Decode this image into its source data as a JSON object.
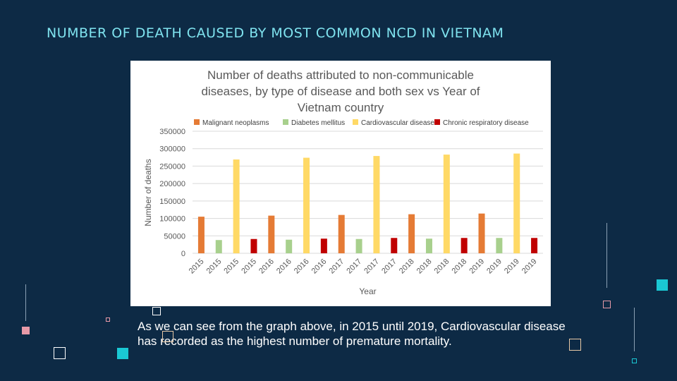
{
  "slide": {
    "title": "NUMBER OF DEATH CAUSED BY MOST COMMON NCD IN VIETNAM",
    "caption": "As we can see from the graph above, in 2015 until 2019, Cardiovascular disease has recorded as the highest number of premature mortality."
  },
  "colors": {
    "background": "#0d2a45",
    "title": "#7fe3ef",
    "accent_teal": "#1ac8d4",
    "accent_pink": "#e79aa8"
  },
  "chart_data": {
    "type": "bar",
    "title": "Number of deaths attributed to non-communicable diseases, by type of disease and both sex vs Year of Vietnam country",
    "title_lines": [
      "Number of deaths attributed to non-communicable",
      "diseases, by type of disease and both sex vs Year of",
      "Vietnam country"
    ],
    "xlabel": "Year",
    "ylabel": "Number of deaths",
    "ylim": [
      0,
      350000
    ],
    "yticks": [
      0,
      50000,
      100000,
      150000,
      200000,
      250000,
      300000,
      350000
    ],
    "grid": true,
    "legend_position": "top",
    "legend": [
      {
        "name": "Malignant neoplasms",
        "color": "#e57b35"
      },
      {
        "name": "Diabetes mellitus",
        "color": "#a8d08d"
      },
      {
        "name": "Cardiovascular diseases",
        "color": "#ffd966"
      },
      {
        "name": "Chronic respiratory disease",
        "color": "#c00000"
      }
    ],
    "categories": [
      "2015",
      "2015",
      "2015",
      "2015",
      "2016",
      "2016",
      "2016",
      "2016",
      "2017",
      "2017",
      "2017",
      "2017",
      "2018",
      "2018",
      "2018",
      "2018",
      "2019",
      "2019",
      "2019",
      "2019"
    ],
    "bars": [
      {
        "category": "2015",
        "series": "Malignant neoplasms",
        "value": 105000
      },
      {
        "category": "2015",
        "series": "Diabetes mellitus",
        "value": 38000
      },
      {
        "category": "2015",
        "series": "Cardiovascular diseases",
        "value": 269000
      },
      {
        "category": "2015",
        "series": "Chronic respiratory disease",
        "value": 41000
      },
      {
        "category": "2016",
        "series": "Malignant neoplasms",
        "value": 108000
      },
      {
        "category": "2016",
        "series": "Diabetes mellitus",
        "value": 39000
      },
      {
        "category": "2016",
        "series": "Cardiovascular diseases",
        "value": 274000
      },
      {
        "category": "2016",
        "series": "Chronic respiratory disease",
        "value": 42000
      },
      {
        "category": "2017",
        "series": "Malignant neoplasms",
        "value": 110000
      },
      {
        "category": "2017",
        "series": "Diabetes mellitus",
        "value": 41000
      },
      {
        "category": "2017",
        "series": "Cardiovascular diseases",
        "value": 279000
      },
      {
        "category": "2017",
        "series": "Chronic respiratory disease",
        "value": 44000
      },
      {
        "category": "2018",
        "series": "Malignant neoplasms",
        "value": 112000
      },
      {
        "category": "2018",
        "series": "Diabetes mellitus",
        "value": 42000
      },
      {
        "category": "2018",
        "series": "Cardiovascular diseases",
        "value": 283000
      },
      {
        "category": "2018",
        "series": "Chronic respiratory disease",
        "value": 44000
      },
      {
        "category": "2019",
        "series": "Malignant neoplasms",
        "value": 114000
      },
      {
        "category": "2019",
        "series": "Diabetes mellitus",
        "value": 44000
      },
      {
        "category": "2019",
        "series": "Cardiovascular diseases",
        "value": 286000
      },
      {
        "category": "2019",
        "series": "Chronic respiratory disease",
        "value": 44000
      }
    ]
  }
}
